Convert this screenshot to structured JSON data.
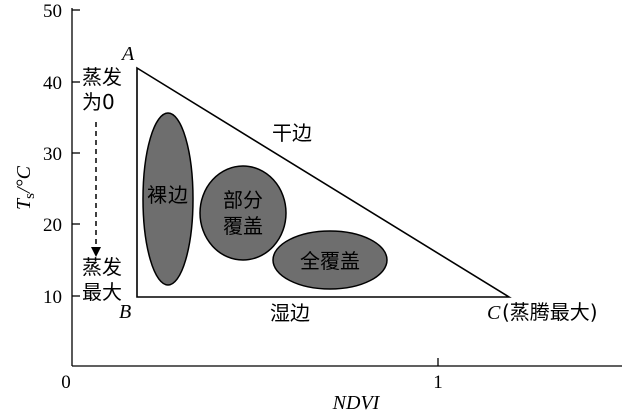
{
  "axes": {
    "x_title": "NDVI",
    "y_title_main": "T",
    "y_title_sub": "s",
    "y_title_unit": "/°C",
    "origin_label": "0",
    "x_tick_label": "1",
    "y_ticks": [
      "10",
      "20",
      "30",
      "40",
      "50"
    ]
  },
  "vertices": {
    "a": "A",
    "b": "B",
    "c": "C",
    "c_note": "(蒸腾最大)"
  },
  "edges": {
    "dry": "干边",
    "wet": "湿边"
  },
  "evaporation": {
    "top_line1": "蒸发",
    "top_line2": "为0",
    "bottom_line1": "蒸发",
    "bottom_line2": "最大"
  },
  "regions": {
    "bare": [
      "裸",
      "边"
    ],
    "partial_line1": "部分",
    "partial_line2": "覆盖",
    "full": "全覆盖"
  },
  "colors": {
    "blob_fill": "#6e6e6e",
    "line": "#000000"
  }
}
